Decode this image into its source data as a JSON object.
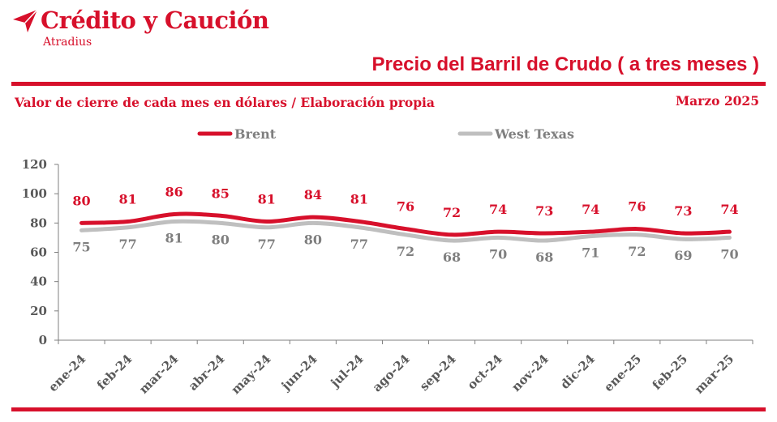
{
  "brand": {
    "name": "Crédito y Caución",
    "sub": "Atradius"
  },
  "header": {
    "title": "Precio del Barril de Crudo ( a tres meses )",
    "subtitle": "Valor de cierre de cada mes en dólares / Elaboración propia",
    "date": "Marzo  2025"
  },
  "colors": {
    "brand": "#d7102b",
    "brent": "#d7102b",
    "wti": "#bfbfbf",
    "label_wti": "#7f7f7f"
  },
  "chart_data": {
    "type": "line",
    "categories": [
      "ene-24",
      "feb-24",
      "mar-24",
      "abr-24",
      "may-24",
      "jun-24",
      "jul-24",
      "ago-24",
      "sep-24",
      "oct-24",
      "nov-24",
      "dic-24",
      "ene-25",
      "feb-25",
      "mar-25"
    ],
    "series": [
      {
        "name": "Brent",
        "values": [
          80,
          81,
          86,
          85,
          81,
          84,
          81,
          76,
          72,
          74,
          73,
          74,
          76,
          73,
          74
        ]
      },
      {
        "name": "West Texas",
        "values": [
          75,
          77,
          81,
          80,
          77,
          80,
          77,
          72,
          68,
          70,
          68,
          71,
          72,
          69,
          70
        ]
      }
    ],
    "ylim": [
      0,
      120
    ],
    "yticks": [
      "0",
      "20",
      "40",
      "60",
      "80",
      "100",
      "120"
    ],
    "legend_position": "top",
    "grid": false
  }
}
